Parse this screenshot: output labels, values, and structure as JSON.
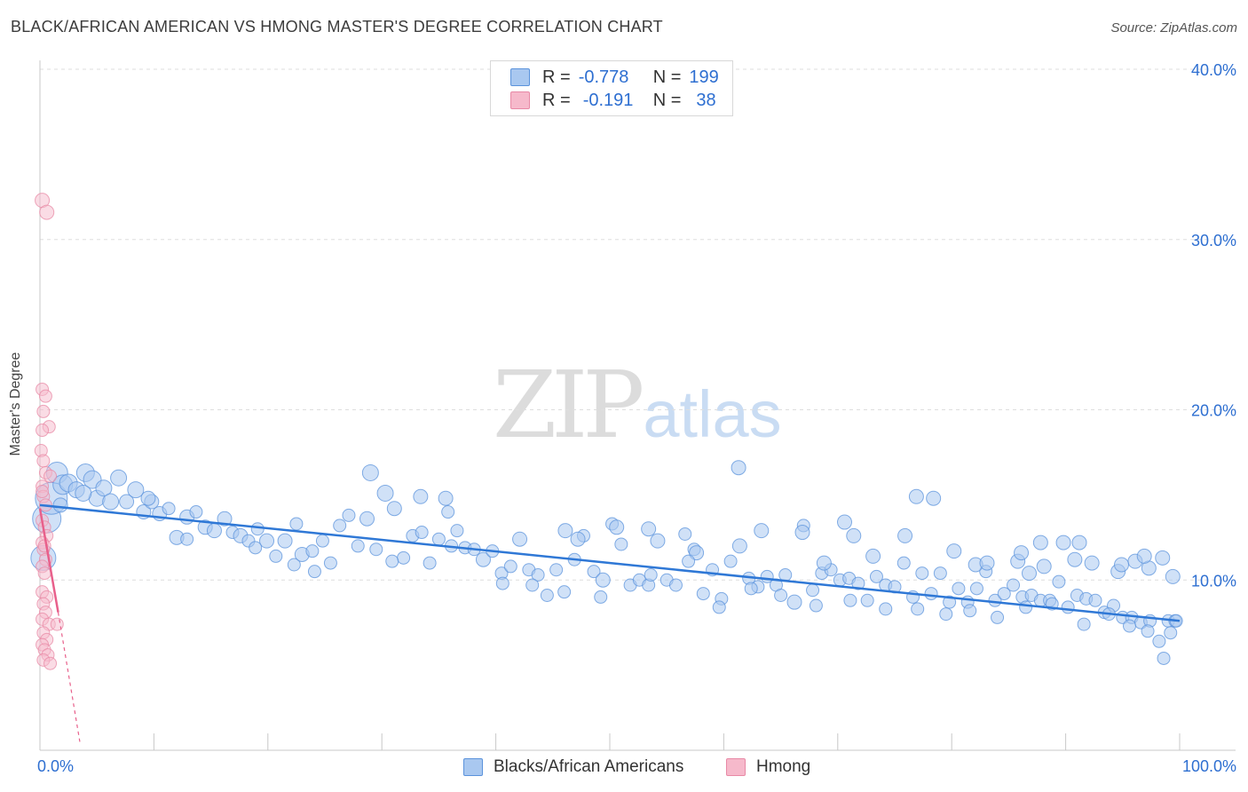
{
  "header": {
    "title": "BLACK/AFRICAN AMERICAN VS HMONG MASTER'S DEGREE CORRELATION CHART",
    "source": "Source: ZipAtlas.com"
  },
  "watermark": {
    "zip": "ZIP",
    "atlas": "atlas"
  },
  "stats": {
    "r_label": "R =",
    "n_label": "N =",
    "rows": [
      {
        "r": "-0.778",
        "n": "199"
      },
      {
        "r": "-0.191",
        "n": "38"
      }
    ]
  },
  "colors": {
    "blue_fill": "#a9c8f0",
    "blue_stroke": "#5b93dc",
    "blue_line": "#2f78d6",
    "pink_fill": "#f6b9cb",
    "pink_stroke": "#e889a6",
    "pink_line": "#e8608b",
    "axis_text": "#2e6fd1",
    "grid": "#dedede"
  },
  "chart_data": {
    "type": "scatter",
    "title": "BLACK/AFRICAN AMERICAN VS HMONG MASTER'S DEGREE CORRELATION CHART",
    "xlabel": "",
    "ylabel": "Master's Degree",
    "xlim": [
      0,
      100
    ],
    "ylim": [
      0,
      40
    ],
    "x_tick_labels": [
      "0.0%",
      "100.0%"
    ],
    "y_ticks": [
      10,
      20,
      30,
      40
    ],
    "y_tick_labels": [
      "10.0%",
      "20.0%",
      "30.0%",
      "40.0%"
    ],
    "grid": true,
    "legend_position": "bottom-center",
    "series": [
      {
        "name": "Blacks/African Americans",
        "r": -0.778,
        "n": 199,
        "trend": {
          "x": [
            0,
            100
          ],
          "y": [
            14.4,
            7.6
          ]
        },
        "points": [
          [
            0.3,
            11.3,
            14
          ],
          [
            0.6,
            13.6,
            16
          ],
          [
            1.0,
            14.8,
            18
          ],
          [
            1.5,
            16.3,
            12
          ],
          [
            2.0,
            15.6,
            11
          ],
          [
            2.5,
            15.7,
            10
          ],
          [
            3.2,
            15.3,
            9
          ],
          [
            4.0,
            16.3,
            10
          ],
          [
            4.6,
            15.9,
            10
          ],
          [
            5.0,
            14.8,
            9
          ],
          [
            5.6,
            15.4,
            9
          ],
          [
            6.2,
            14.6,
            9
          ],
          [
            6.9,
            16.0,
            9
          ],
          [
            7.6,
            14.6,
            8
          ],
          [
            8.4,
            15.3,
            9
          ],
          [
            9.1,
            14.0,
            8
          ],
          [
            9.8,
            14.6,
            8
          ],
          [
            10.5,
            13.9,
            8
          ],
          [
            11.3,
            14.2,
            7
          ],
          [
            12.0,
            12.5,
            8
          ],
          [
            12.9,
            13.7,
            8
          ],
          [
            13.7,
            14.0,
            7
          ],
          [
            14.5,
            13.1,
            8
          ],
          [
            15.3,
            12.9,
            8
          ],
          [
            16.2,
            13.6,
            8
          ],
          [
            16.9,
            12.8,
            7
          ],
          [
            17.6,
            12.6,
            8
          ],
          [
            18.3,
            12.3,
            7
          ],
          [
            19.1,
            13.0,
            7
          ],
          [
            19.9,
            12.3,
            8
          ],
          [
            20.7,
            11.4,
            7
          ],
          [
            21.5,
            12.3,
            8
          ],
          [
            22.3,
            10.9,
            7
          ],
          [
            23.0,
            11.5,
            8
          ],
          [
            23.9,
            11.7,
            7
          ],
          [
            24.8,
            12.3,
            7
          ],
          [
            25.5,
            11.0,
            7
          ],
          [
            26.3,
            13.2,
            7
          ],
          [
            27.1,
            13.8,
            7
          ],
          [
            27.9,
            12.0,
            7
          ],
          [
            28.7,
            13.6,
            8
          ],
          [
            29.5,
            11.8,
            7
          ],
          [
            30.3,
            15.1,
            9
          ],
          [
            31.1,
            14.2,
            8
          ],
          [
            31.9,
            11.3,
            7
          ],
          [
            32.7,
            12.6,
            7
          ],
          [
            33.5,
            12.8,
            7
          ],
          [
            34.2,
            11.0,
            7
          ],
          [
            35.0,
            12.4,
            7
          ],
          [
            35.8,
            14.0,
            7
          ],
          [
            36.6,
            12.9,
            7
          ],
          [
            37.3,
            11.9,
            7
          ],
          [
            38.1,
            11.8,
            7
          ],
          [
            38.9,
            11.2,
            8
          ],
          [
            39.7,
            11.7,
            7
          ],
          [
            40.5,
            10.4,
            7
          ],
          [
            41.3,
            10.8,
            7
          ],
          [
            42.1,
            12.4,
            8
          ],
          [
            42.9,
            10.6,
            7
          ],
          [
            43.7,
            10.3,
            7
          ],
          [
            44.5,
            9.1,
            7
          ],
          [
            45.3,
            10.6,
            7
          ],
          [
            46.1,
            12.9,
            8
          ],
          [
            46.9,
            11.2,
            7
          ],
          [
            47.7,
            12.6,
            7
          ],
          [
            48.6,
            10.5,
            7
          ],
          [
            49.4,
            10.0,
            8
          ],
          [
            50.2,
            13.3,
            7
          ],
          [
            51.0,
            12.1,
            7
          ],
          [
            51.8,
            9.7,
            7
          ],
          [
            52.6,
            10.0,
            7
          ],
          [
            53.4,
            9.7,
            7
          ],
          [
            54.2,
            12.3,
            8
          ],
          [
            55.0,
            10.0,
            7
          ],
          [
            55.8,
            9.7,
            7
          ],
          [
            56.6,
            12.7,
            7
          ],
          [
            57.4,
            11.8,
            7
          ],
          [
            58.2,
            9.2,
            7
          ],
          [
            59.0,
            10.6,
            7
          ],
          [
            59.8,
            8.9,
            7
          ],
          [
            60.6,
            11.1,
            7
          ],
          [
            61.4,
            12.0,
            8
          ],
          [
            62.2,
            10.1,
            7
          ],
          [
            63.0,
            9.6,
            7
          ],
          [
            63.8,
            10.2,
            7
          ],
          [
            64.6,
            9.7,
            7
          ],
          [
            65.4,
            10.3,
            7
          ],
          [
            66.2,
            8.7,
            8
          ],
          [
            67.0,
            13.2,
            7
          ],
          [
            67.8,
            9.4,
            7
          ],
          [
            68.6,
            10.4,
            7
          ],
          [
            69.4,
            10.6,
            7
          ],
          [
            70.2,
            10.0,
            7
          ],
          [
            71.0,
            10.1,
            7
          ],
          [
            71.8,
            9.8,
            7
          ],
          [
            72.6,
            8.8,
            7
          ],
          [
            73.4,
            10.2,
            7
          ],
          [
            74.2,
            9.7,
            7
          ],
          [
            75.0,
            9.6,
            7
          ],
          [
            75.8,
            11.0,
            7
          ],
          [
            76.6,
            9.0,
            7
          ],
          [
            77.4,
            10.4,
            7
          ],
          [
            78.2,
            9.2,
            7
          ],
          [
            79.0,
            10.4,
            7
          ],
          [
            79.8,
            8.7,
            7
          ],
          [
            80.6,
            9.5,
            7
          ],
          [
            81.4,
            8.7,
            7
          ],
          [
            82.2,
            9.5,
            7
          ],
          [
            83.0,
            10.5,
            7
          ],
          [
            83.8,
            8.8,
            7
          ],
          [
            84.6,
            9.2,
            7
          ],
          [
            85.4,
            9.7,
            7
          ],
          [
            86.2,
            9.0,
            7
          ],
          [
            87.0,
            9.1,
            7
          ],
          [
            87.8,
            8.8,
            7
          ],
          [
            88.6,
            8.8,
            7
          ],
          [
            89.4,
            9.9,
            7
          ],
          [
            90.2,
            8.4,
            7
          ],
          [
            91.0,
            9.1,
            7
          ],
          [
            91.8,
            8.9,
            7
          ],
          [
            92.6,
            8.8,
            7
          ],
          [
            93.4,
            8.1,
            7
          ],
          [
            94.2,
            8.5,
            7
          ],
          [
            95.0,
            7.8,
            7
          ],
          [
            95.8,
            7.8,
            7
          ],
          [
            96.6,
            7.5,
            7
          ],
          [
            97.4,
            7.6,
            7
          ],
          [
            98.2,
            6.4,
            7
          ],
          [
            99.0,
            7.6,
            7
          ],
          [
            99.6,
            7.6,
            7
          ],
          [
            1.8,
            14.4,
            8
          ],
          [
            3.8,
            15.1,
            9
          ],
          [
            9.5,
            14.8,
            8
          ],
          [
            22.5,
            13.3,
            7
          ],
          [
            29.0,
            16.3,
            9
          ],
          [
            33.4,
            14.9,
            8
          ],
          [
            35.6,
            14.8,
            8
          ],
          [
            47.2,
            12.4,
            8
          ],
          [
            50.6,
            13.1,
            8
          ],
          [
            53.4,
            13.0,
            8
          ],
          [
            57.6,
            11.6,
            8
          ],
          [
            61.3,
            16.6,
            8
          ],
          [
            63.3,
            12.9,
            8
          ],
          [
            66.9,
            12.8,
            8
          ],
          [
            68.8,
            11.0,
            8
          ],
          [
            70.6,
            13.4,
            8
          ],
          [
            71.4,
            12.6,
            8
          ],
          [
            73.1,
            11.4,
            8
          ],
          [
            75.9,
            12.6,
            8
          ],
          [
            76.9,
            14.9,
            8
          ],
          [
            78.4,
            14.8,
            8
          ],
          [
            80.2,
            11.7,
            8
          ],
          [
            82.1,
            10.9,
            8
          ],
          [
            83.1,
            11.0,
            8
          ],
          [
            85.8,
            11.1,
            8
          ],
          [
            86.8,
            10.4,
            8
          ],
          [
            88.1,
            10.8,
            8
          ],
          [
            90.8,
            11.2,
            8
          ],
          [
            92.3,
            11.0,
            8
          ],
          [
            94.6,
            10.5,
            8
          ],
          [
            96.1,
            11.1,
            8
          ],
          [
            97.3,
            10.7,
            8
          ],
          [
            98.5,
            11.3,
            8
          ],
          [
            99.4,
            10.2,
            8
          ],
          [
            86.1,
            11.6,
            8
          ],
          [
            87.8,
            12.2,
            8
          ],
          [
            89.8,
            12.2,
            8
          ],
          [
            91.2,
            12.2,
            8
          ],
          [
            94.9,
            10.9,
            8
          ],
          [
            96.9,
            11.4,
            8
          ],
          [
            12.9,
            12.4,
            7
          ],
          [
            18.9,
            11.9,
            7
          ],
          [
            24.1,
            10.5,
            7
          ],
          [
            30.9,
            11.1,
            7
          ],
          [
            36.1,
            12.0,
            7
          ],
          [
            40.6,
            9.8,
            7
          ],
          [
            43.2,
            9.7,
            7
          ],
          [
            46.0,
            9.3,
            7
          ],
          [
            49.2,
            9.0,
            7
          ],
          [
            53.6,
            10.3,
            7
          ],
          [
            56.9,
            11.1,
            7
          ],
          [
            59.6,
            8.4,
            7
          ],
          [
            62.4,
            9.5,
            7
          ],
          [
            65.0,
            9.1,
            7
          ],
          [
            68.1,
            8.5,
            7
          ],
          [
            71.1,
            8.8,
            7
          ],
          [
            74.2,
            8.3,
            7
          ],
          [
            77.0,
            8.3,
            7
          ],
          [
            79.5,
            8.0,
            7
          ],
          [
            81.6,
            8.2,
            7
          ],
          [
            84.0,
            7.8,
            7
          ],
          [
            86.5,
            8.4,
            7
          ],
          [
            88.8,
            8.6,
            7
          ],
          [
            91.6,
            7.4,
            7
          ],
          [
            93.8,
            8.0,
            7
          ],
          [
            95.6,
            7.3,
            7
          ],
          [
            97.2,
            7.0,
            7
          ],
          [
            98.6,
            5.4,
            7
          ],
          [
            99.2,
            6.9,
            7
          ],
          [
            99.7,
            7.6,
            7
          ]
        ]
      },
      {
        "name": "Hmong",
        "r": -0.191,
        "n": 38,
        "trend": {
          "x": [
            0,
            1.6
          ],
          "y": [
            14.2,
            8.1
          ]
        },
        "trend_dashed_extension": {
          "x": [
            1.6,
            3.5
          ],
          "y": [
            8.1,
            0.5
          ]
        },
        "points": [
          [
            0.2,
            32.3,
            8
          ],
          [
            0.6,
            31.6,
            8
          ],
          [
            0.2,
            21.2,
            7
          ],
          [
            0.5,
            20.8,
            7
          ],
          [
            0.3,
            19.9,
            7
          ],
          [
            0.8,
            19.0,
            7
          ],
          [
            0.2,
            18.8,
            7
          ],
          [
            0.1,
            17.6,
            7
          ],
          [
            0.3,
            17.0,
            7
          ],
          [
            0.5,
            16.3,
            7
          ],
          [
            0.9,
            16.1,
            7
          ],
          [
            0.2,
            15.5,
            7
          ],
          [
            0.3,
            14.9,
            7
          ],
          [
            0.5,
            14.4,
            7
          ],
          [
            0.2,
            13.5,
            7
          ],
          [
            0.4,
            13.1,
            7
          ],
          [
            0.6,
            12.6,
            7
          ],
          [
            0.2,
            12.2,
            7
          ],
          [
            0.3,
            11.8,
            7
          ],
          [
            0.5,
            11.2,
            7
          ],
          [
            0.2,
            10.8,
            7
          ],
          [
            0.4,
            10.4,
            7
          ],
          [
            0.2,
            9.3,
            7
          ],
          [
            0.6,
            9.0,
            7
          ],
          [
            0.3,
            8.6,
            7
          ],
          [
            0.5,
            8.1,
            7
          ],
          [
            0.2,
            7.7,
            7
          ],
          [
            0.8,
            7.4,
            7
          ],
          [
            1.5,
            7.4,
            7
          ],
          [
            0.3,
            6.9,
            7
          ],
          [
            0.6,
            6.5,
            7
          ],
          [
            0.2,
            6.2,
            7
          ],
          [
            0.4,
            5.9,
            7
          ],
          [
            0.7,
            5.6,
            7
          ],
          [
            0.3,
            5.3,
            7
          ],
          [
            0.9,
            5.1,
            7
          ],
          [
            0.4,
            12.0,
            7
          ],
          [
            0.2,
            15.2,
            7
          ]
        ]
      }
    ]
  },
  "legend": {
    "items": [
      {
        "label": "Blacks/African Americans"
      },
      {
        "label": "Hmong"
      }
    ]
  }
}
